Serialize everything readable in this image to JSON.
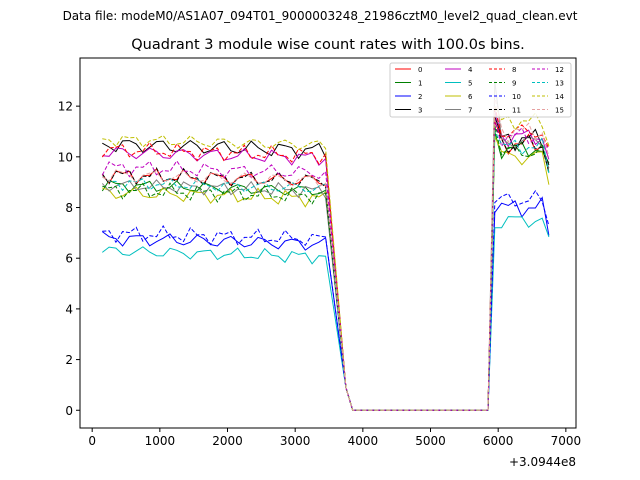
{
  "figure": {
    "suptitle": "Data file: modeM0/AS1A07_094T01_9000003248_21986cztM0_level2_quad_clean.evt"
  },
  "chart_data": {
    "type": "line",
    "title": "Quadrant 3 module wise count rates with 100.0s bins.",
    "xlabel": "",
    "ylabel": "",
    "x_offset_label": "+3.0944e8",
    "xlim": [
      -180,
      7150
    ],
    "ylim": [
      -0.7,
      13.9
    ],
    "xticks": [
      0,
      1000,
      2000,
      3000,
      4000,
      5000,
      6000,
      7000
    ],
    "xtick_labels": [
      "0",
      "1000",
      "2000",
      "3000",
      "4000",
      "5000",
      "6000",
      "7000"
    ],
    "yticks": [
      0,
      2,
      4,
      6,
      8,
      10,
      12
    ],
    "ytick_labels": [
      "0",
      "2",
      "4",
      "6",
      "8",
      "10",
      "12"
    ],
    "grid": false,
    "legend_position": "top-right",
    "segments": [
      {
        "x_start": 150,
        "step": 100,
        "count": 34
      },
      {
        "x_start": 3750,
        "step": 100,
        "count": 22
      },
      {
        "x_start": 5950,
        "step": 100,
        "count": 9
      }
    ],
    "series": [
      {
        "name": "0",
        "color": "#ff0000",
        "dashed": false,
        "base1": 9.3,
        "base2": 10.5,
        "spread": 0.35,
        "t": 1.0,
        "v3650": 8.4,
        "v5950": 11.4
      },
      {
        "name": "1",
        "color": "#008000",
        "dashed": false,
        "base1": 8.9,
        "base2": 10.3,
        "spread": 0.3,
        "t": 2.0,
        "v3650": 7.8,
        "v5950": 11.0
      },
      {
        "name": "2",
        "color": "#0000ff",
        "dashed": false,
        "base1": 6.8,
        "base2": 8.0,
        "spread": 0.35,
        "t": 3.0,
        "v3650": 5.5,
        "v5950": 7.8
      },
      {
        "name": "3",
        "color": "#000000",
        "dashed": false,
        "base1": 10.5,
        "base2": 10.7,
        "spread": 0.4,
        "t": 4.0,
        "v3650": 8.2,
        "v5950": 11.6
      },
      {
        "name": "4",
        "color": "#bf00bf",
        "dashed": false,
        "base1": 10.2,
        "base2": 10.8,
        "spread": 0.35,
        "t": 5.0,
        "v3650": 8.0,
        "v5950": 11.8
      },
      {
        "name": "5",
        "color": "#00bfbf",
        "dashed": false,
        "base1": 6.3,
        "base2": 7.5,
        "spread": 0.3,
        "t": 6.0,
        "v3650": 5.4,
        "v5950": 7.2
      },
      {
        "name": "6",
        "color": "#bfbf00",
        "dashed": false,
        "base1": 8.6,
        "base2": 10.0,
        "spread": 0.35,
        "t": 7.0,
        "v3650": 7.6,
        "v5950": 10.8
      },
      {
        "name": "7",
        "color": "#808080",
        "dashed": false,
        "base1": 8.9,
        "base2": 10.6,
        "spread": 0.3,
        "t": 8.0,
        "v3650": 7.8,
        "v5950": 13.0
      },
      {
        "name": "8",
        "color": "#ff0000",
        "dashed": true,
        "base1": 10.3,
        "base2": 11.0,
        "spread": 0.35,
        "t": 9.0,
        "v3650": 8.4,
        "v5950": 12.0
      },
      {
        "name": "9",
        "color": "#008000",
        "dashed": true,
        "base1": 8.7,
        "base2": 10.2,
        "spread": 0.35,
        "t": 10.0,
        "v3650": 7.6,
        "v5950": 11.2
      },
      {
        "name": "10",
        "color": "#0000ff",
        "dashed": true,
        "base1": 7.0,
        "base2": 8.3,
        "spread": 0.35,
        "t": 11.0,
        "v3650": 5.8,
        "v5950": 8.2
      },
      {
        "name": "11",
        "color": "#000000",
        "dashed": true,
        "base1": 9.3,
        "base2": 10.5,
        "spread": 0.35,
        "t": 12.0,
        "v3650": 8.0,
        "v5950": 11.2
      },
      {
        "name": "12",
        "color": "#bf00bf",
        "dashed": true,
        "base1": 9.6,
        "base2": 10.8,
        "spread": 0.35,
        "t": 13.0,
        "v3650": 8.2,
        "v5950": 11.5
      },
      {
        "name": "13",
        "color": "#00bfbf",
        "dashed": true,
        "base1": 9.0,
        "base2": 10.4,
        "spread": 0.3,
        "t": 14.0,
        "v3650": 7.9,
        "v5950": 11.0
      },
      {
        "name": "14",
        "color": "#bfbf00",
        "dashed": true,
        "base1": 10.7,
        "base2": 11.4,
        "spread": 0.3,
        "t": 15.0,
        "v3650": 8.5,
        "v5950": 12.0
      },
      {
        "name": "15",
        "color": "#e6a0a0",
        "dashed": true,
        "base1": 9.3,
        "base2": 11.0,
        "spread": 0.35,
        "t": 16.0,
        "v3650": 8.0,
        "v5950": 12.4
      }
    ]
  }
}
